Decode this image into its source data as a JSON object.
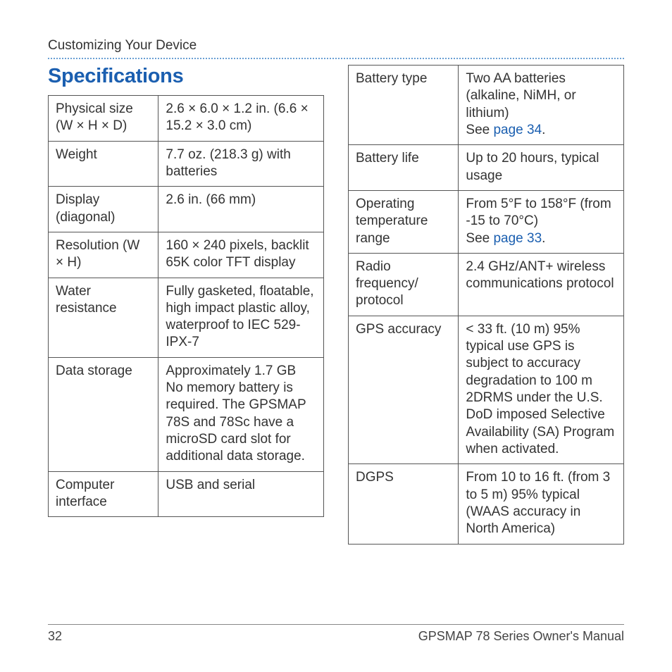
{
  "header": {
    "breadcrumb": "Customizing Your Device"
  },
  "section": {
    "title": "Specifications"
  },
  "tableLeft": {
    "rows": [
      {
        "label": "Physical size (W × H × D)",
        "value": "2.6 × 6.0 × 1.2 in. (6.6 × 15.2 × 3.0 cm)"
      },
      {
        "label": "Weight",
        "value": "7.7 oz. (218.3 g) with batteries"
      },
      {
        "label": "Display (diagonal)",
        "value": "2.6 in. (66 mm)"
      },
      {
        "label": "Resolution (W × H)",
        "value": "160 × 240 pixels, backlit 65K color TFT display"
      },
      {
        "label": "Water resistance",
        "value": "Fully gasketed, floatable, high impact plastic alloy, waterproof to IEC 529-IPX-7"
      },
      {
        "label": "Data storage",
        "value": "Approximately 1.7 GB No memory battery is required. The GPSMAP 78S and 78Sc have a microSD card slot for additional data storage."
      },
      {
        "label": "Computer interface",
        "value": "USB and serial"
      }
    ]
  },
  "tableRight": {
    "rows": [
      {
        "label": "Battery type",
        "value_pre": "Two AA batteries (alkaline, NiMH, or lithium)",
        "link_prefix": "See ",
        "link_text": "page 34",
        "link_suffix": "."
      },
      {
        "label": "Battery life",
        "value": "Up to 20 hours, typical usage"
      },
      {
        "label": "Operating temperature range",
        "value_pre": "From 5°F to 158°F (from -15 to 70°C)",
        "link_prefix": "See ",
        "link_text": "page 33",
        "link_suffix": "."
      },
      {
        "label": "Radio frequency/ protocol",
        "value": "2.4 GHz/ANT+ wireless communications protocol"
      },
      {
        "label": "GPS accuracy",
        "value": "< 33 ft. (10 m) 95% typical use GPS is subject to accuracy degradation to 100 m 2DRMS under the U.S. DoD imposed Selective Availability (SA) Program when activated."
      },
      {
        "label": "DGPS",
        "value": "From 10 to 16 ft. (from 3 to 5 m) 95% typical (WAAS accuracy in North America)"
      }
    ]
  },
  "footer": {
    "page_number": "32",
    "manual_title": "GPSMAP 78 Series Owner's Manual"
  },
  "styling": {
    "link_color": "#1b5fb0",
    "title_color": "#1b5fb0",
    "rule_color": "#6a9fd4",
    "border_color": "#555",
    "font_size_body": 19,
    "font_size_title": 29
  }
}
